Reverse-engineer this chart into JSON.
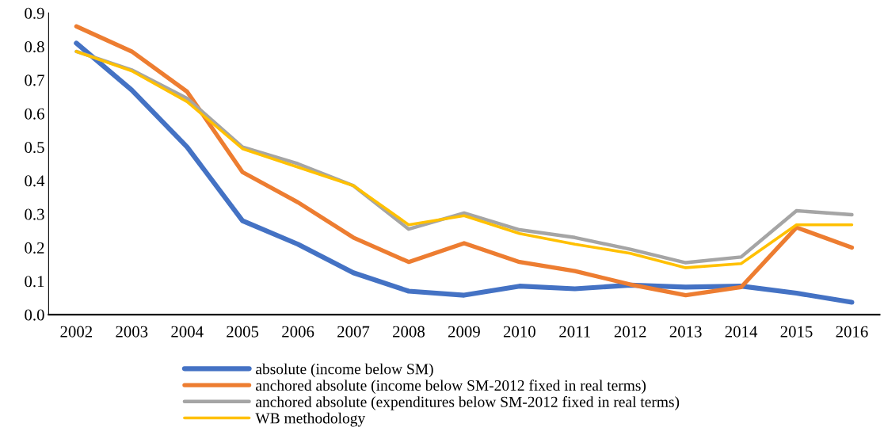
{
  "chart_data": {
    "type": "line",
    "categories": [
      "2002",
      "2003",
      "2004",
      "2005",
      "2006",
      "2007",
      "2008",
      "2009",
      "2010",
      "2011",
      "2012",
      "2013",
      "2014",
      "2015",
      "2016"
    ],
    "series": [
      {
        "name": "absolute (income below SM)",
        "color": "#4472c4",
        "values": [
          0.81,
          0.67,
          0.5,
          0.28,
          0.21,
          0.125,
          0.07,
          0.058,
          0.085,
          0.077,
          0.088,
          0.082,
          0.085,
          0.064,
          0.037
        ]
      },
      {
        "name": "anchored absolute (income below SM-2012 fixed in real terms)",
        "color": "#ed7d31",
        "values": [
          0.86,
          0.785,
          0.665,
          0.425,
          0.335,
          0.23,
          0.157,
          0.213,
          0.157,
          0.13,
          0.09,
          0.058,
          0.082,
          0.26,
          0.2
        ]
      },
      {
        "name": "anchored absolute (expenditures below SM-2012 fixed in real terms)",
        "color": "#a5a5a5",
        "values": [
          0.785,
          0.73,
          0.645,
          0.5,
          0.45,
          0.385,
          0.255,
          0.303,
          0.253,
          0.23,
          0.195,
          0.155,
          0.172,
          0.31,
          0.298
        ]
      },
      {
        "name": "WB methodology",
        "color": "#ffc000",
        "values": [
          0.785,
          0.727,
          0.635,
          0.495,
          0.44,
          0.385,
          0.268,
          0.295,
          0.242,
          0.21,
          0.183,
          0.14,
          0.152,
          0.268,
          0.268
        ]
      }
    ],
    "ylim": [
      0,
      0.9
    ],
    "yticks": [
      {
        "value": 0,
        "label": "0.0"
      },
      {
        "value": 0.1,
        "label": "0.1"
      },
      {
        "value": 0.2,
        "label": "0.2"
      },
      {
        "value": 0.3,
        "label": "0.3"
      },
      {
        "value": 0.4,
        "label": "0.4"
      },
      {
        "value": 0.5,
        "label": "0.5"
      },
      {
        "value": 0.6,
        "label": "0.6"
      },
      {
        "value": 0.7,
        "label": "0.7"
      },
      {
        "value": 0.8,
        "label": "0.8"
      },
      {
        "value": 0.9,
        "label": "0.9"
      }
    ],
    "grid": false,
    "legend": "bottom",
    "marker": "none",
    "line_style": "solid"
  }
}
